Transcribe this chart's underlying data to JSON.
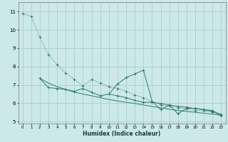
{
  "xlabel": "Humidex (Indice chaleur)",
  "bg_color": "#cce8e8",
  "grid_color": "#aad0d0",
  "line_color": "#2d7d6e",
  "x_ticks": [
    0,
    1,
    2,
    3,
    4,
    5,
    6,
    7,
    8,
    9,
    10,
    11,
    12,
    13,
    14,
    15,
    16,
    17,
    18,
    19,
    20,
    21,
    22,
    23
  ],
  "ylim": [
    4.9,
    11.5
  ],
  "xlim": [
    -0.5,
    23.5
  ],
  "yticks": [
    5,
    6,
    7,
    8,
    9,
    10,
    11
  ],
  "series_dotted": {
    "x": [
      0,
      1,
      2,
      3,
      4,
      5,
      6,
      7,
      8,
      9,
      10,
      11,
      12,
      13,
      14,
      15,
      16,
      17,
      18,
      19,
      20,
      21,
      22,
      23
    ],
    "y": [
      10.9,
      10.75,
      9.6,
      8.65,
      8.1,
      7.65,
      7.3,
      6.95,
      7.3,
      7.1,
      6.9,
      6.8,
      6.65,
      6.45,
      6.3,
      6.1,
      5.9,
      5.85,
      5.75,
      5.7,
      5.6,
      5.6,
      5.5,
      5.35
    ]
  },
  "series_flat": {
    "x": [
      2,
      3,
      4,
      5,
      6,
      7,
      8,
      9,
      10,
      11,
      12,
      13,
      14,
      15,
      16,
      17,
      18,
      19,
      20,
      21,
      22,
      23
    ],
    "y": [
      7.35,
      6.85,
      6.8,
      6.75,
      6.65,
      6.8,
      6.6,
      6.4,
      6.5,
      6.4,
      6.3,
      6.15,
      6.05,
      6.05,
      5.98,
      5.9,
      5.82,
      5.78,
      5.7,
      5.65,
      5.55,
      5.38
    ]
  },
  "series_linear": {
    "x": [
      2,
      3,
      4,
      5,
      6,
      7,
      8,
      9,
      10,
      11,
      12,
      13,
      14,
      15,
      16,
      17,
      18,
      19,
      20,
      21,
      22,
      23
    ],
    "y": [
      7.35,
      7.1,
      6.9,
      6.75,
      6.6,
      6.5,
      6.4,
      6.3,
      6.2,
      6.12,
      6.05,
      5.98,
      5.9,
      5.82,
      5.75,
      5.67,
      5.6,
      5.55,
      5.5,
      5.45,
      5.4,
      5.35
    ]
  },
  "series_peak": {
    "x": [
      10,
      11,
      12,
      13,
      14,
      15,
      16,
      17,
      18,
      19,
      20,
      21,
      22,
      23
    ],
    "y": [
      6.5,
      7.05,
      7.4,
      7.6,
      7.8,
      6.1,
      5.65,
      5.9,
      5.42,
      5.72,
      5.72,
      5.65,
      5.6,
      5.32
    ]
  }
}
